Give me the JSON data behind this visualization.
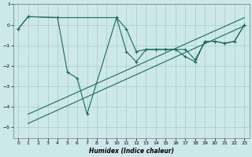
{
  "xlabel": "Humidex (Indice chaleur)",
  "bg_color": "#cce8e8",
  "grid_color": "#aacccc",
  "line_color": "#1a6b5a",
  "xlim": [
    -0.5,
    23.5
  ],
  "ylim": [
    -5.5,
    1.0
  ],
  "yticks": [
    1,
    0,
    -1,
    -2,
    -3,
    -4,
    -5
  ],
  "xticks": [
    0,
    1,
    2,
    3,
    4,
    5,
    6,
    7,
    8,
    9,
    10,
    11,
    12,
    13,
    14,
    15,
    16,
    17,
    18,
    19,
    20,
    21,
    22,
    23
  ],
  "series1_x": [
    0,
    1,
    4,
    10,
    11,
    12,
    13,
    14,
    15,
    16,
    17,
    18,
    19,
    20,
    21,
    22,
    23
  ],
  "series1_y": [
    -0.2,
    0.4,
    0.35,
    0.35,
    -0.2,
    -1.3,
    -1.2,
    -1.2,
    -1.2,
    -1.2,
    -1.2,
    -1.7,
    -0.8,
    -0.8,
    -0.9,
    -0.8,
    0.0
  ],
  "series2_x": [
    0,
    1,
    4,
    5,
    6,
    7,
    10,
    11,
    12,
    13,
    14,
    15,
    16,
    17,
    18,
    19,
    20,
    21,
    22,
    23
  ],
  "series2_y": [
    -0.2,
    0.4,
    0.35,
    -2.3,
    -2.6,
    -4.35,
    0.35,
    -1.3,
    -1.8,
    -1.2,
    -1.2,
    -1.2,
    -1.2,
    -1.55,
    -1.8,
    -0.8,
    -0.8,
    -0.9,
    -0.8,
    0.0
  ],
  "trend1_x": [
    1,
    23
  ],
  "trend1_y": [
    -4.8,
    -0.05
  ],
  "trend2_x": [
    1,
    23
  ],
  "trend2_y": [
    -4.35,
    0.35
  ]
}
